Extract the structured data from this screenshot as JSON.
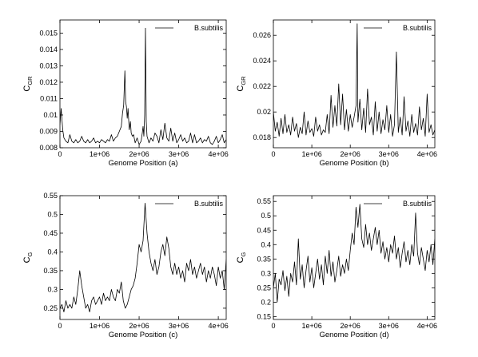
{
  "chart_data": [
    {
      "type": "line",
      "panel": "a",
      "xlabel": "Genome Position (a)",
      "ylabel": "C",
      "ylabel_sub": "GR",
      "legend": "B.subtilis",
      "legend_position": "top-right",
      "grid": false,
      "xlim": [
        0,
        4200000
      ],
      "ylim": [
        0.008,
        0.0158
      ],
      "xticks": [
        0,
        1000000,
        2000000,
        3000000,
        4000000
      ],
      "xtick_labels": [
        "0",
        "1e+06",
        "2e+06",
        "3e+06",
        "4e+06"
      ],
      "yticks": [
        0.008,
        0.009,
        0.01,
        0.011,
        0.012,
        0.013,
        0.014,
        0.015
      ],
      "ytick_labels": [
        "0.008",
        "0.009",
        "0.01",
        "0.011",
        "0.012",
        "0.013",
        "0.014",
        "0.015"
      ],
      "series": [
        {
          "name": "B.subtilis",
          "x": [
            0,
            30000,
            70000,
            100000,
            150000,
            200000,
            250000,
            300000,
            350000,
            400000,
            450000,
            500000,
            550000,
            600000,
            650000,
            700000,
            750000,
            800000,
            850000,
            900000,
            950000,
            1000000,
            1050000,
            1100000,
            1150000,
            1200000,
            1250000,
            1300000,
            1350000,
            1400000,
            1450000,
            1500000,
            1550000,
            1580000,
            1610000,
            1640000,
            1660000,
            1680000,
            1700000,
            1720000,
            1750000,
            1780000,
            1800000,
            1830000,
            1860000,
            1900000,
            1950000,
            2000000,
            2050000,
            2080000,
            2100000,
            2120000,
            2140000,
            2160000,
            2180000,
            2200000,
            2250000,
            2300000,
            2350000,
            2400000,
            2450000,
            2500000,
            2550000,
            2600000,
            2650000,
            2700000,
            2750000,
            2800000,
            2850000,
            2900000,
            2950000,
            3000000,
            3050000,
            3100000,
            3150000,
            3200000,
            3250000,
            3300000,
            3350000,
            3400000,
            3450000,
            3500000,
            3550000,
            3600000,
            3650000,
            3700000,
            3750000,
            3800000,
            3850000,
            3900000,
            3950000,
            4000000,
            4050000,
            4100000,
            4150000,
            4200000
          ],
          "y": [
            0.0094,
            0.0104,
            0.0091,
            0.0086,
            0.0084,
            0.0083,
            0.0088,
            0.0084,
            0.0083,
            0.0085,
            0.0083,
            0.0084,
            0.0087,
            0.0084,
            0.0083,
            0.0085,
            0.0083,
            0.0084,
            0.0086,
            0.0083,
            0.0084,
            0.0083,
            0.0085,
            0.0084,
            0.0083,
            0.0085,
            0.0084,
            0.0088,
            0.0084,
            0.0086,
            0.0087,
            0.009,
            0.0093,
            0.0101,
            0.0106,
            0.0127,
            0.0108,
            0.0105,
            0.0098,
            0.0104,
            0.0091,
            0.0096,
            0.0089,
            0.0087,
            0.0088,
            0.0083,
            0.0086,
            0.0082,
            0.0084,
            0.0089,
            0.0093,
            0.0087,
            0.01,
            0.0153,
            0.0096,
            0.0087,
            0.0083,
            0.0086,
            0.0084,
            0.0089,
            0.0087,
            0.0083,
            0.0091,
            0.0085,
            0.0095,
            0.0086,
            0.0084,
            0.0092,
            0.0084,
            0.0089,
            0.0083,
            0.0085,
            0.0088,
            0.0084,
            0.0086,
            0.0083,
            0.0084,
            0.0089,
            0.0083,
            0.0088,
            0.0083,
            0.0084,
            0.0086,
            0.0083,
            0.0085,
            0.0084,
            0.0087,
            0.0083,
            0.0082,
            0.0084,
            0.0087,
            0.0083,
            0.0085,
            0.0088,
            0.0083,
            0.0085
          ]
        }
      ]
    },
    {
      "type": "line",
      "panel": "b",
      "xlabel": "Genome Position (b)",
      "ylabel": "C",
      "ylabel_sub": "GR",
      "legend": "B.subtilis",
      "legend_position": "top-right",
      "grid": false,
      "xlim": [
        0,
        4200000
      ],
      "ylim": [
        0.0172,
        0.0272
      ],
      "xticks": [
        0,
        1000000,
        2000000,
        3000000,
        4000000
      ],
      "xtick_labels": [
        "0",
        "1e+06",
        "2e+06",
        "3e+06",
        "4e+06"
      ],
      "yticks": [
        0.018,
        0.02,
        0.022,
        0.024,
        0.026
      ],
      "ytick_labels": [
        "0.018",
        "0.02",
        "0.022",
        "0.024",
        "0.026"
      ],
      "series": [
        {
          "name": "B.subtilis",
          "x": [
            0,
            50000,
            100000,
            150000,
            200000,
            250000,
            300000,
            350000,
            400000,
            450000,
            500000,
            550000,
            600000,
            650000,
            700000,
            750000,
            800000,
            850000,
            900000,
            950000,
            1000000,
            1050000,
            1100000,
            1150000,
            1200000,
            1250000,
            1300000,
            1350000,
            1400000,
            1450000,
            1500000,
            1550000,
            1600000,
            1650000,
            1700000,
            1750000,
            1800000,
            1850000,
            1900000,
            1950000,
            2000000,
            2050000,
            2100000,
            2150000,
            2180000,
            2200000,
            2250000,
            2300000,
            2350000,
            2400000,
            2450000,
            2500000,
            2550000,
            2600000,
            2650000,
            2700000,
            2750000,
            2800000,
            2850000,
            2900000,
            2950000,
            3000000,
            3050000,
            3100000,
            3150000,
            3200000,
            3250000,
            3300000,
            3350000,
            3400000,
            3450000,
            3500000,
            3550000,
            3600000,
            3650000,
            3700000,
            3750000,
            3800000,
            3850000,
            3900000,
            3950000,
            4000000,
            4050000,
            4100000,
            4150000,
            4200000
          ],
          "y": [
            0.02,
            0.0185,
            0.0192,
            0.0181,
            0.0195,
            0.0183,
            0.0198,
            0.0184,
            0.019,
            0.0182,
            0.0196,
            0.0185,
            0.0191,
            0.018,
            0.0188,
            0.0183,
            0.02,
            0.0182,
            0.0193,
            0.0184,
            0.0187,
            0.0181,
            0.0196,
            0.0185,
            0.019,
            0.0182,
            0.0186,
            0.0184,
            0.0198,
            0.0183,
            0.0213,
            0.0188,
            0.0205,
            0.0189,
            0.0222,
            0.019,
            0.0214,
            0.0186,
            0.0202,
            0.0185,
            0.0198,
            0.0188,
            0.0196,
            0.0205,
            0.0269,
            0.0192,
            0.021,
            0.0186,
            0.0203,
            0.0184,
            0.0218,
            0.019,
            0.0196,
            0.0182,
            0.0208,
            0.0185,
            0.02,
            0.0183,
            0.0194,
            0.0186,
            0.0205,
            0.0184,
            0.0198,
            0.0181,
            0.019,
            0.0247,
            0.0184,
            0.0196,
            0.0182,
            0.0212,
            0.0185,
            0.0193,
            0.0181,
            0.0198,
            0.0184,
            0.0191,
            0.0182,
            0.0204,
            0.0186,
            0.0195,
            0.0181,
            0.0214,
            0.0184,
            0.019,
            0.0182,
            0.0186
          ]
        }
      ]
    },
    {
      "type": "line",
      "panel": "c",
      "xlabel": "Genome Position (c)",
      "ylabel": "C",
      "ylabel_sub": "G",
      "legend": "B.subtilis",
      "legend_position": "top-right",
      "grid": false,
      "xlim": [
        0,
        4200000
      ],
      "ylim": [
        0.22,
        0.55
      ],
      "xticks": [
        0,
        1000000,
        2000000,
        3000000,
        4000000
      ],
      "xtick_labels": [
        "0",
        "1e+06",
        "2e+06",
        "3e+06",
        "4e+06"
      ],
      "yticks": [
        0.25,
        0.3,
        0.35,
        0.4,
        0.45,
        0.5,
        0.55
      ],
      "ytick_labels": [
        "0.25",
        "0.3",
        "0.35",
        "0.4",
        "0.45",
        "0.5",
        "0.55"
      ],
      "series": [
        {
          "name": "B.subtilis",
          "x": [
            0,
            50000,
            100000,
            150000,
            200000,
            250000,
            300000,
            350000,
            400000,
            450000,
            500000,
            550000,
            600000,
            650000,
            700000,
            750000,
            800000,
            850000,
            900000,
            950000,
            1000000,
            1050000,
            1100000,
            1150000,
            1200000,
            1250000,
            1300000,
            1350000,
            1400000,
            1450000,
            1500000,
            1550000,
            1600000,
            1650000,
            1700000,
            1750000,
            1800000,
            1850000,
            1900000,
            1950000,
            2000000,
            2050000,
            2100000,
            2150000,
            2200000,
            2250000,
            2300000,
            2350000,
            2400000,
            2450000,
            2500000,
            2550000,
            2600000,
            2650000,
            2700000,
            2750000,
            2800000,
            2850000,
            2900000,
            2950000,
            3000000,
            3050000,
            3100000,
            3150000,
            3200000,
            3250000,
            3300000,
            3350000,
            3400000,
            3450000,
            3500000,
            3550000,
            3600000,
            3650000,
            3700000,
            3750000,
            3800000,
            3850000,
            3900000,
            3950000,
            4000000,
            4050000,
            4100000,
            4150000,
            4200000
          ],
          "y": [
            0.25,
            0.26,
            0.24,
            0.27,
            0.25,
            0.26,
            0.25,
            0.28,
            0.26,
            0.3,
            0.35,
            0.31,
            0.28,
            0.25,
            0.26,
            0.24,
            0.27,
            0.28,
            0.26,
            0.27,
            0.28,
            0.26,
            0.29,
            0.27,
            0.28,
            0.27,
            0.3,
            0.28,
            0.27,
            0.3,
            0.29,
            0.32,
            0.27,
            0.25,
            0.26,
            0.28,
            0.3,
            0.31,
            0.33,
            0.37,
            0.42,
            0.4,
            0.43,
            0.53,
            0.45,
            0.4,
            0.37,
            0.35,
            0.38,
            0.34,
            0.36,
            0.4,
            0.42,
            0.39,
            0.44,
            0.41,
            0.36,
            0.34,
            0.37,
            0.34,
            0.36,
            0.33,
            0.35,
            0.32,
            0.37,
            0.35,
            0.38,
            0.34,
            0.36,
            0.33,
            0.35,
            0.37,
            0.34,
            0.36,
            0.32,
            0.35,
            0.33,
            0.36,
            0.34,
            0.31,
            0.36,
            0.33,
            0.35,
            0.3,
            0.38
          ]
        }
      ]
    },
    {
      "type": "line",
      "panel": "d",
      "xlabel": "Genome Position (d)",
      "ylabel": "C",
      "ylabel_sub": "G",
      "legend": "B.subtilis",
      "legend_position": "top-right",
      "grid": false,
      "xlim": [
        0,
        4200000
      ],
      "ylim": [
        0.14,
        0.57
      ],
      "xticks": [
        0,
        1000000,
        2000000,
        3000000,
        4000000
      ],
      "xtick_labels": [
        "0",
        "1e+06",
        "2e+06",
        "3e+06",
        "4e+06"
      ],
      "yticks": [
        0.15,
        0.2,
        0.25,
        0.3,
        0.35,
        0.4,
        0.45,
        0.5,
        0.55
      ],
      "ytick_labels": [
        "0.15",
        "0.2",
        "0.25",
        "0.3",
        "0.35",
        "0.4",
        "0.45",
        "0.5",
        "0.55"
      ],
      "series": [
        {
          "name": "B.subtilis",
          "x": [
            0,
            50000,
            100000,
            150000,
            200000,
            250000,
            300000,
            350000,
            400000,
            450000,
            500000,
            550000,
            600000,
            650000,
            700000,
            750000,
            800000,
            850000,
            900000,
            950000,
            1000000,
            1050000,
            1100000,
            1150000,
            1200000,
            1250000,
            1300000,
            1350000,
            1400000,
            1450000,
            1500000,
            1550000,
            1600000,
            1650000,
            1700000,
            1750000,
            1800000,
            1850000,
            1900000,
            1950000,
            2000000,
            2050000,
            2100000,
            2150000,
            2200000,
            2250000,
            2300000,
            2350000,
            2400000,
            2450000,
            2500000,
            2550000,
            2600000,
            2650000,
            2700000,
            2750000,
            2800000,
            2850000,
            2900000,
            2950000,
            3000000,
            3050000,
            3100000,
            3150000,
            3200000,
            3250000,
            3300000,
            3350000,
            3400000,
            3450000,
            3500000,
            3550000,
            3600000,
            3650000,
            3700000,
            3750000,
            3800000,
            3850000,
            3900000,
            3950000,
            4000000,
            4050000,
            4100000,
            4150000,
            4200000
          ],
          "y": [
            0.25,
            0.3,
            0.2,
            0.28,
            0.26,
            0.31,
            0.24,
            0.29,
            0.22,
            0.3,
            0.27,
            0.34,
            0.26,
            0.42,
            0.28,
            0.33,
            0.25,
            0.31,
            0.36,
            0.27,
            0.32,
            0.25,
            0.3,
            0.35,
            0.28,
            0.33,
            0.26,
            0.36,
            0.3,
            0.38,
            0.29,
            0.34,
            0.27,
            0.31,
            0.36,
            0.29,
            0.33,
            0.3,
            0.35,
            0.31,
            0.38,
            0.44,
            0.4,
            0.53,
            0.46,
            0.54,
            0.42,
            0.39,
            0.47,
            0.4,
            0.44,
            0.38,
            0.42,
            0.46,
            0.4,
            0.45,
            0.37,
            0.41,
            0.35,
            0.39,
            0.34,
            0.4,
            0.37,
            0.43,
            0.35,
            0.39,
            0.32,
            0.37,
            0.41,
            0.34,
            0.38,
            0.33,
            0.4,
            0.36,
            0.51,
            0.37,
            0.33,
            0.39,
            0.35,
            0.31,
            0.38,
            0.34,
            0.4,
            0.33,
            0.42
          ]
        }
      ]
    }
  ]
}
